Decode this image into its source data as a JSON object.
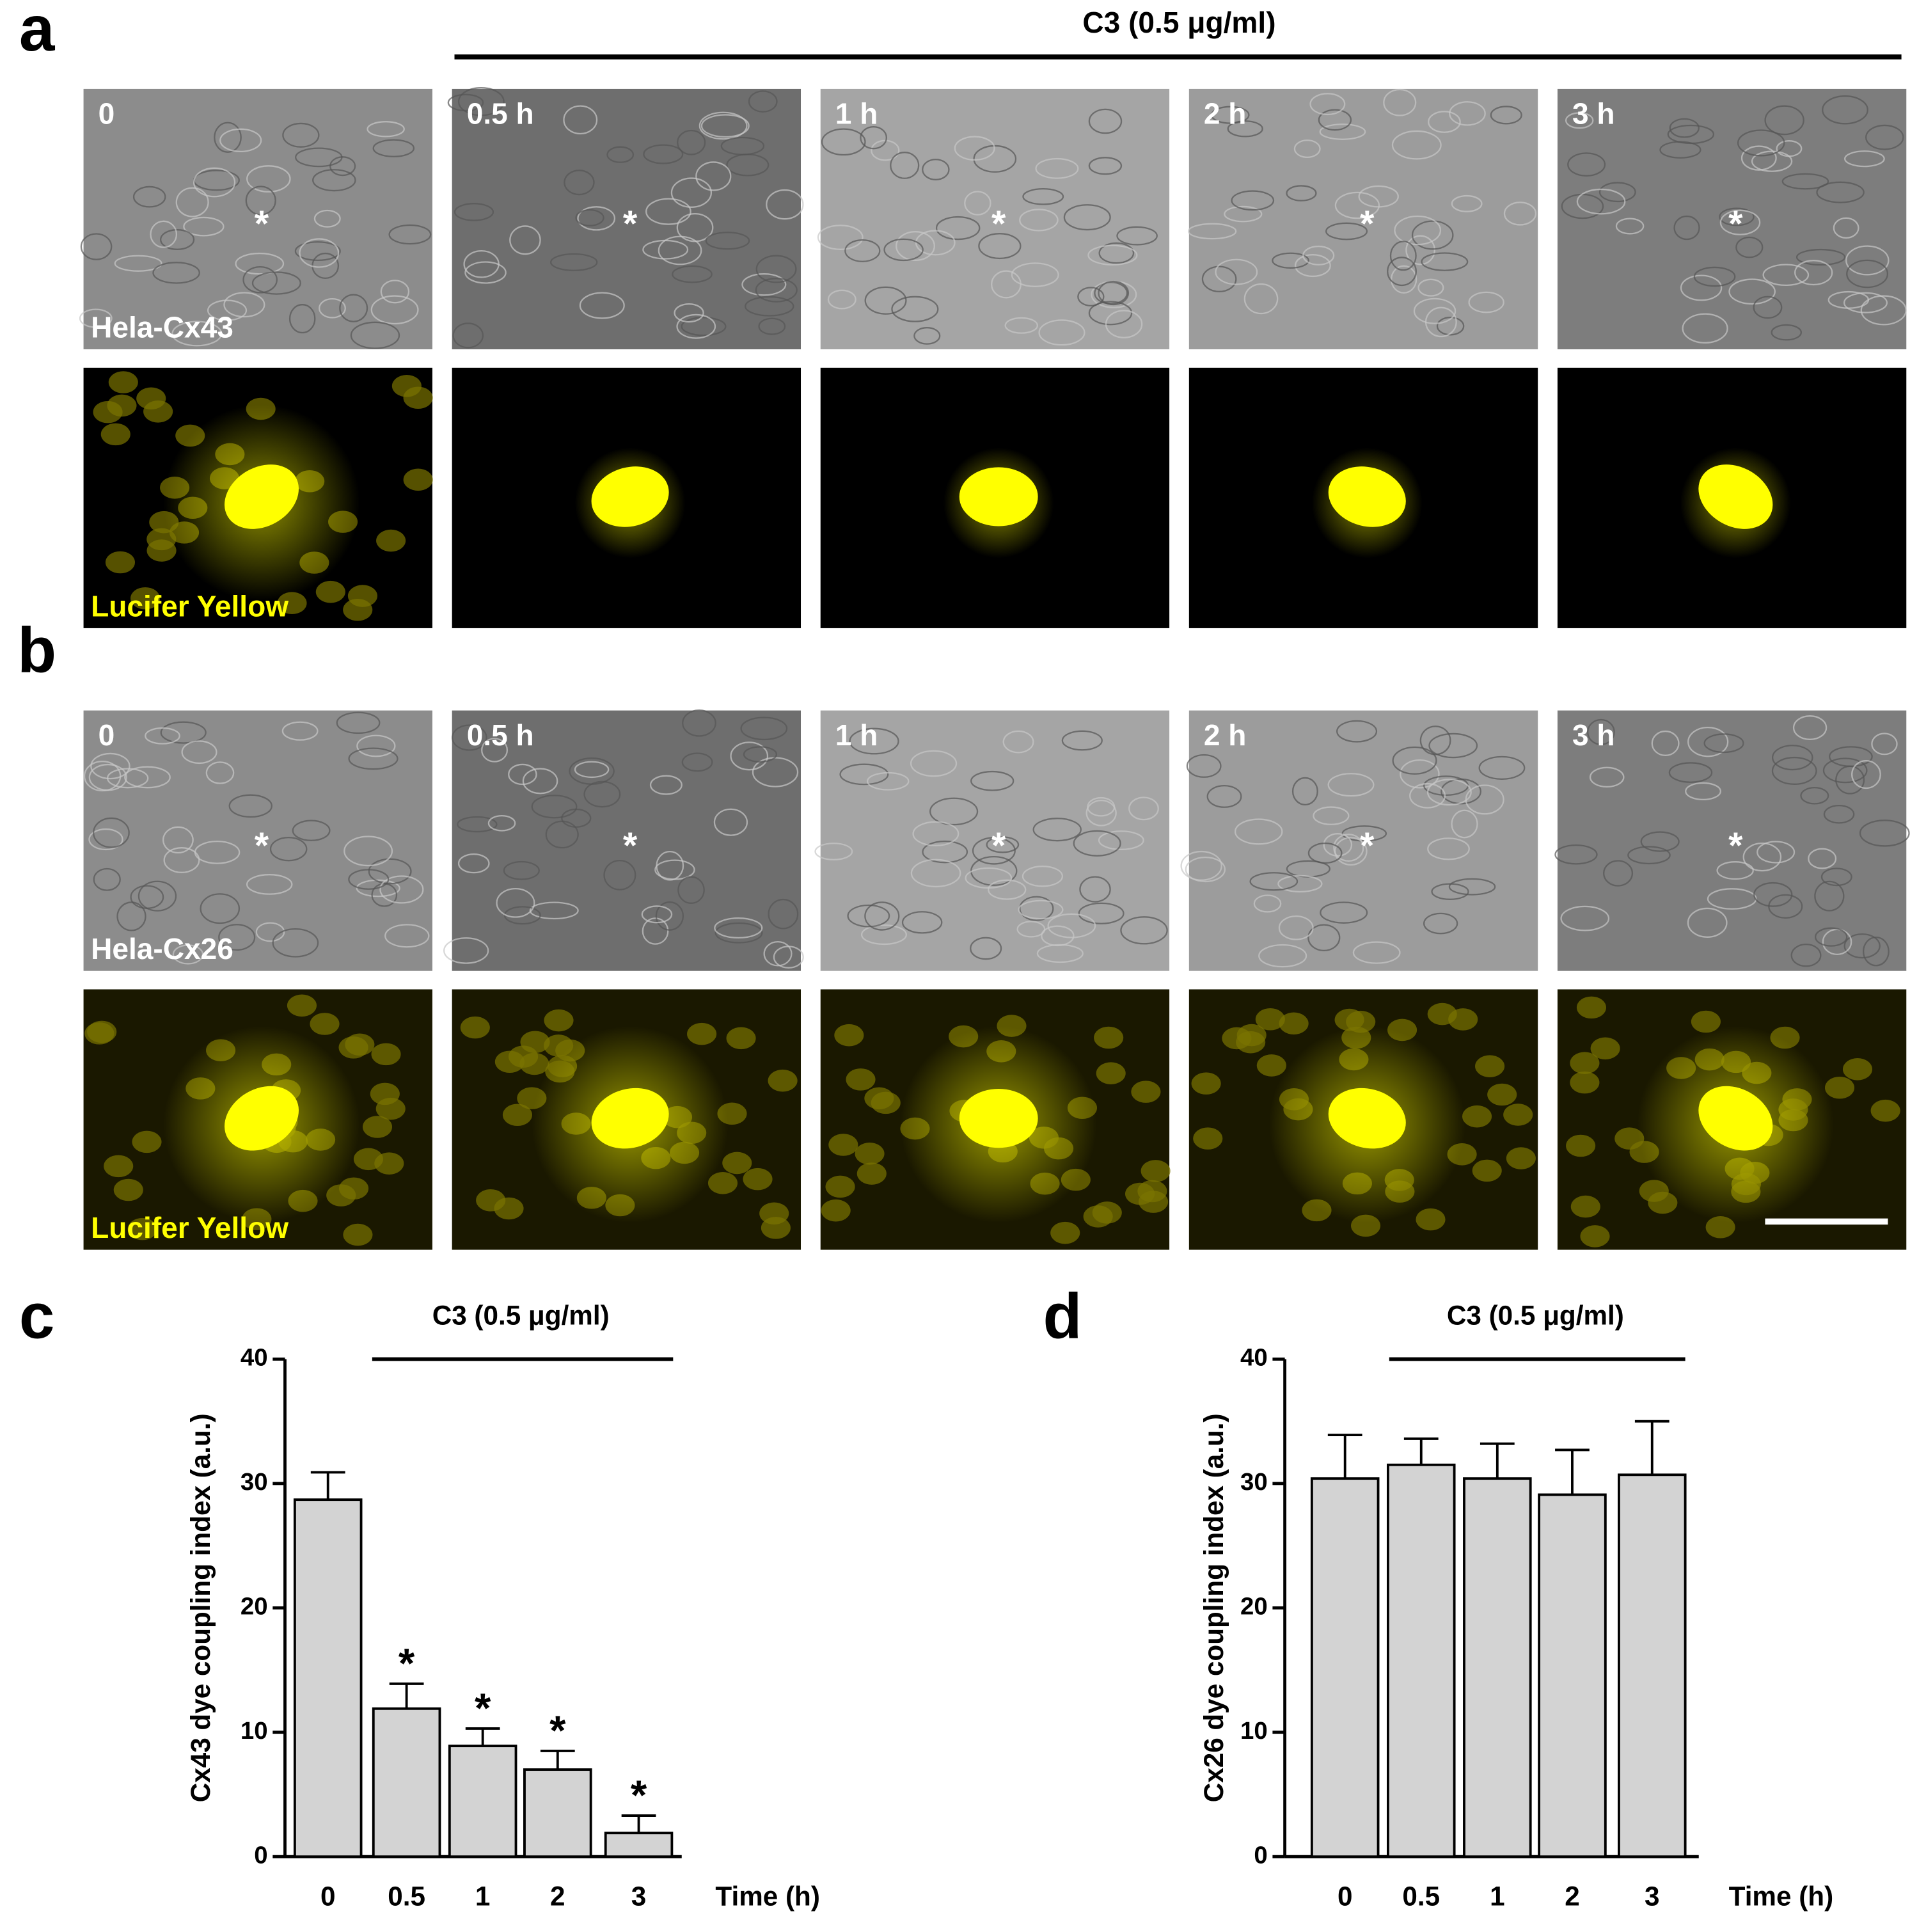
{
  "figure": {
    "panels": [
      {
        "label": "a",
        "title": "C3 (0.5 μg/ml)",
        "times": [
          "0",
          "0.5 h",
          "1 h",
          "2 h",
          "3 h"
        ],
        "marker": "*",
        "cell_line": "Hela-Cx43",
        "dye": "Lucifer Yellow"
      },
      {
        "label": "b",
        "times": [
          "0",
          "0.5 h",
          "1 h",
          "2 h",
          "3 h"
        ],
        "marker": "*",
        "cell_line": "Hela-Cx26",
        "dye": "Lucifer Yellow"
      }
    ]
  },
  "chart_data": [
    {
      "type": "bar",
      "panel": "c",
      "title": "C3 (0.5 μg/ml)",
      "y_label": "Cx43 dye coupling index (a.u.)",
      "x_label": "Time (h)",
      "categories": [
        "0",
        "0.5",
        "1",
        "2",
        "3"
      ],
      "values": [
        28.7,
        11.9,
        8.9,
        7.0,
        1.9
      ],
      "errors": [
        2.2,
        2.0,
        1.4,
        1.5,
        1.4
      ],
      "significance": [
        null,
        "*",
        "*",
        "*",
        "*"
      ],
      "color": "#d3d3d3",
      "ylim": [
        0,
        40
      ],
      "yticks": [
        0,
        10,
        20,
        30,
        40
      ]
    },
    {
      "type": "bar",
      "panel": "d",
      "title": "C3 (0.5 μg/ml)",
      "y_label": "Cx26 dye coupling index (a.u.)",
      "x_label": "Time (h)",
      "categories": [
        "0",
        "0.5",
        "1",
        "2",
        "3"
      ],
      "values": [
        30.4,
        31.5,
        30.4,
        29.1,
        30.7
      ],
      "errors": [
        3.5,
        2.1,
        2.8,
        3.6,
        4.3
      ],
      "color": "#d3d3d3",
      "ylim": [
        0,
        40
      ],
      "yticks": [
        0,
        10,
        20,
        30,
        40
      ]
    }
  ]
}
